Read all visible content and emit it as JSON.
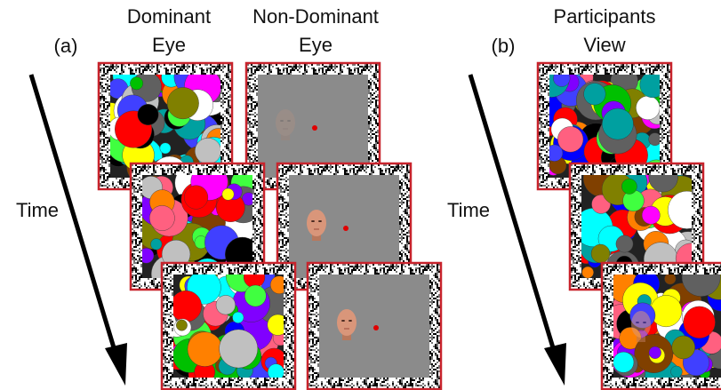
{
  "panel_a": {
    "label": "(a)",
    "dominant_eye": [
      "Dominant",
      "Eye"
    ],
    "non_dominant_eye": [
      "Non-Dominant",
      "Eye"
    ],
    "time": "Time"
  },
  "panel_b": {
    "label": "(b)",
    "participants_view": [
      "Participants",
      "View"
    ],
    "time": "Time"
  }
}
